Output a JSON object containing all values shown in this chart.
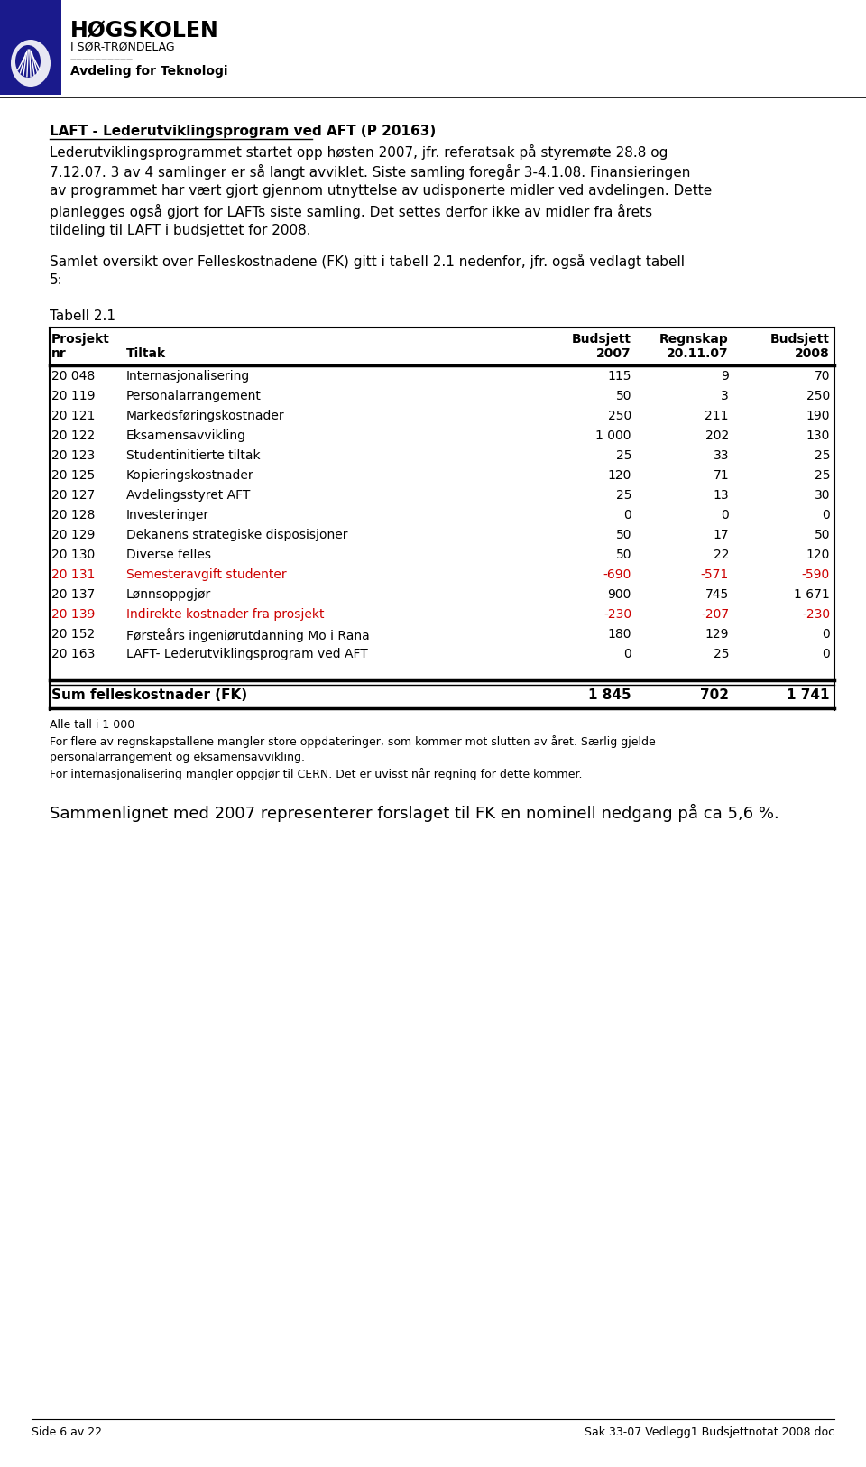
{
  "title_org": "HØGSKOLEN",
  "subtitle_org": "I SØR-TRØNDELAG",
  "dept": "Avdeling for Teknologi",
  "header_color": "#1a1a8c",
  "body_lines": [
    {
      "text": "LAFT - Lederutviklingsprogram ved AFT (P 20163)",
      "bold": true,
      "underline": true,
      "indent": 55
    },
    {
      "text": "Lederutviklingsprogrammet startet opp høsten 2007, jfr. referatsak på styremøte 28.8 og",
      "bold": false,
      "underline": false,
      "indent": 55
    },
    {
      "text": "7.12.07. 3 av 4 samlinger er så langt avviklet. Siste samling foregår 3-4.1.08. Finansieringen",
      "bold": false,
      "underline": false,
      "indent": 55
    },
    {
      "text": "av programmet har vært gjort gjennom utnyttelse av udisponerte midler ved avdelingen. Dette",
      "bold": false,
      "underline": false,
      "indent": 55
    },
    {
      "text": "planlegges også gjort for LAFTs siste samling. Det settes derfor ikke av midler fra årets",
      "bold": false,
      "underline": false,
      "indent": 55
    },
    {
      "text": "tildeling til LAFT i budsjettet for 2008.",
      "bold": false,
      "underline": false,
      "indent": 55
    },
    {
      "text": "",
      "bold": false,
      "underline": false,
      "indent": 55
    },
    {
      "text": "Samlet oversikt over Felleskostnadene (FK) gitt i tabell 2.1 nedenfor, jfr. også vedlagt tabell",
      "bold": false,
      "underline": false,
      "indent": 55
    },
    {
      "text": "5:",
      "bold": false,
      "underline": false,
      "indent": 55
    }
  ],
  "table_label": "Tabell 2.1",
  "rows": [
    [
      "20 048",
      "Internasjonalisering",
      "115",
      "9",
      "70",
      false
    ],
    [
      "20 119",
      "Personalarrangement",
      "50",
      "3",
      "250",
      false
    ],
    [
      "20 121",
      "Markedsføringskostnader",
      "250",
      "211",
      "190",
      false
    ],
    [
      "20 122",
      "Eksamensavvikling",
      "1 000",
      "202",
      "130",
      false
    ],
    [
      "20 123",
      "Studentinitierte tiltak",
      "25",
      "33",
      "25",
      false
    ],
    [
      "20 125",
      "Kopieringskostnader",
      "120",
      "71",
      "25",
      false
    ],
    [
      "20 127",
      "Avdelingsstyret AFT",
      "25",
      "13",
      "30",
      false
    ],
    [
      "20 128",
      "Investeringer",
      "0",
      "0",
      "0",
      false
    ],
    [
      "20 129",
      "Dekanens strategiske disposisjoner",
      "50",
      "17",
      "50",
      false
    ],
    [
      "20 130",
      "Diverse felles",
      "50",
      "22",
      "120",
      false
    ],
    [
      "20 131",
      "Semesteravgift studenter",
      "-690",
      "-571",
      "-590",
      true
    ],
    [
      "20 137",
      "Lønnsoppgjør",
      "900",
      "745",
      "1 671",
      false
    ],
    [
      "20 139",
      "Indirekte kostnader fra prosjekt",
      "-230",
      "-207",
      "-230",
      true
    ],
    [
      "20 152",
      "Førsteårs ingeniørutdanning Mo i Rana",
      "180",
      "129",
      "0",
      false
    ],
    [
      "20 163",
      "LAFT- Lederutviklingsprogram ved AFT",
      "0",
      "25",
      "0",
      false
    ]
  ],
  "sum_row": [
    "Sum felleskostnader (FK)",
    "1 845",
    "702",
    "1 741"
  ],
  "footnotes": [
    "Alle tall i 1 000",
    "For flere av regnskapstallene mangler store oppdateringer, som kommer mot slutten av året. Særlig gjelde",
    "personalarrangement og eksamensavvikling.",
    "For internasjonalisering mangler oppgjør til CERN. Det er uvisst når regning for dette kommer."
  ],
  "closing_text": "Sammenlignet med 2007 representerer forslaget til FK en nominell nedgang på ca 5,6 %.",
  "footer_left": "Side 6 av 22",
  "footer_right": "Sak 33-07 Vedlegg1 Budsjettnotat 2008.doc",
  "bg_color": "#ffffff",
  "text_color": "#000000",
  "red_color": "#cc0000"
}
